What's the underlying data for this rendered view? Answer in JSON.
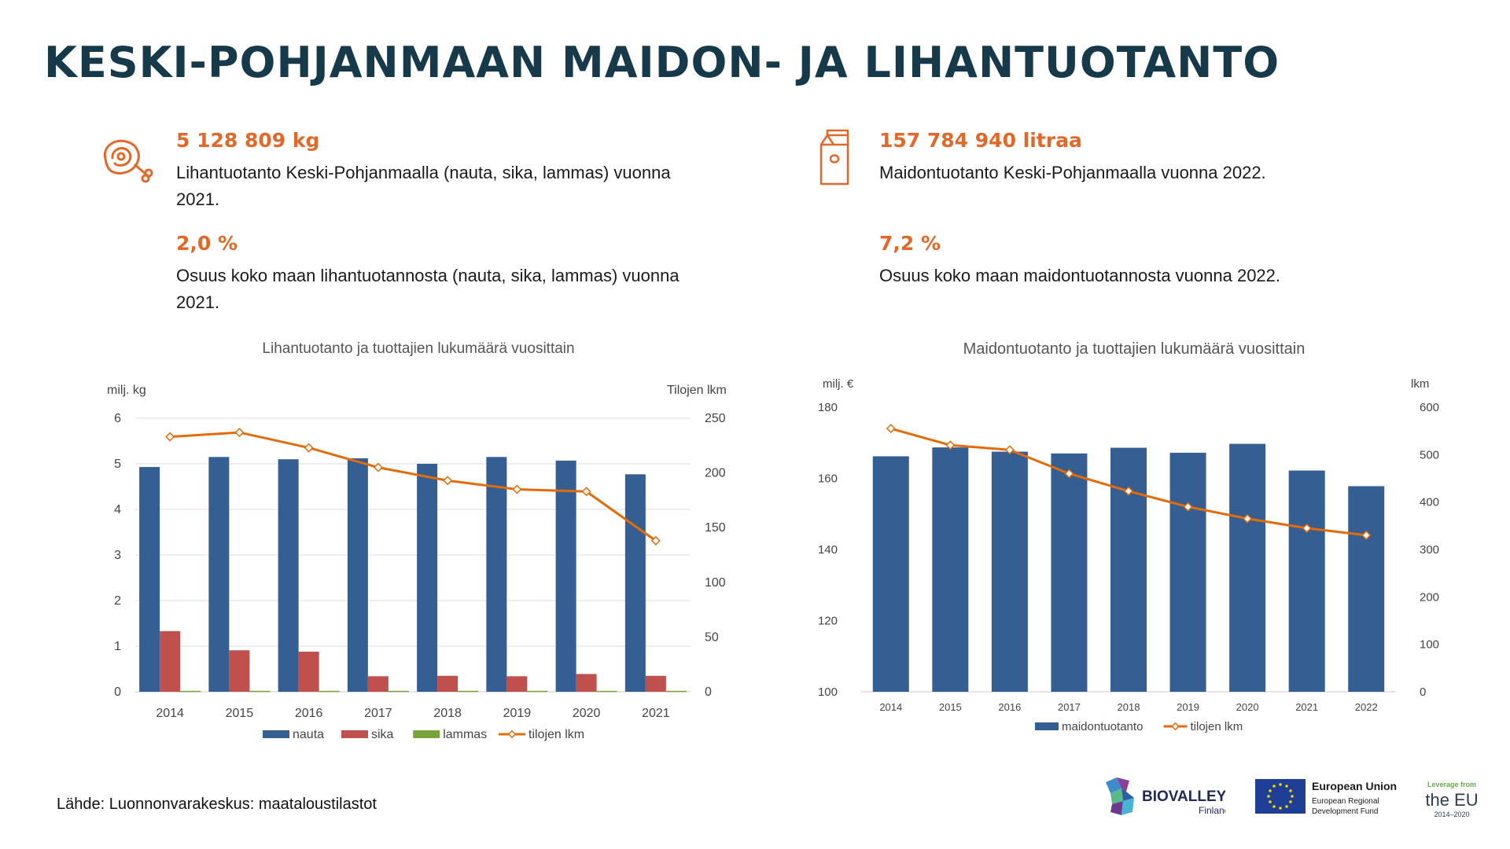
{
  "header": {
    "title": "KESKI-POHJANMAAN MAIDON- JA LIHANTUOTANTO"
  },
  "meat": {
    "icon": "meat-drumstick-icon",
    "stat1_value": "5 128 809 kg",
    "stat1_desc": "Lihantuotanto Keski-Pohjanmaalla (nauta, sika, lammas) vuonna 2021.",
    "stat2_value": "2,0 %",
    "stat2_desc": "Osuus koko maan lihantuotannosta (nauta, sika, lammas) vuonna 2021."
  },
  "milk": {
    "icon": "milk-carton-icon",
    "stat1_value": "157 784 940 litraa",
    "stat1_desc": "Maidontuotanto Keski-Pohjanmaalla vuonna 2022.",
    "stat2_value": "7,2 %",
    "stat2_desc": "Osuus koko maan maidontuotannosta vuonna 2022."
  },
  "colors": {
    "accent": "#e0692a",
    "title": "#163a4a",
    "bar_blue": "#355f93",
    "bar_red": "#c0504d",
    "bar_green": "#77a33a",
    "line_orange": "#e36c0a"
  },
  "chart_data": [
    {
      "type": "bar",
      "title": "Lihantuotanto ja tuottajien lukumäärä vuosittain",
      "ylabel": "milj. kg",
      "y2label": "Tilojen lkm",
      "ylim": [
        0,
        6
      ],
      "y2lim": [
        0,
        250
      ],
      "yticks": [
        0,
        1,
        2,
        3,
        4,
        5,
        6
      ],
      "y2ticks": [
        0,
        50,
        100,
        150,
        200,
        250
      ],
      "grid": true,
      "legend_position": "bottom",
      "categories": [
        "2014",
        "2015",
        "2016",
        "2017",
        "2018",
        "2019",
        "2020",
        "2021"
      ],
      "series": [
        {
          "name": "nauta",
          "kind": "bar",
          "axis": "left",
          "color": "#355f93",
          "values": [
            4.93,
            5.15,
            5.1,
            5.12,
            5.0,
            5.15,
            5.07,
            4.77
          ]
        },
        {
          "name": "sika",
          "kind": "bar",
          "axis": "left",
          "color": "#c0504d",
          "values": [
            1.33,
            0.91,
            0.88,
            0.34,
            0.35,
            0.34,
            0.39,
            0.35
          ]
        },
        {
          "name": "lammas",
          "kind": "bar",
          "axis": "left",
          "color": "#77a33a",
          "values": [
            0.02,
            0.02,
            0.02,
            0.02,
            0.02,
            0.02,
            0.02,
            0.02
          ]
        },
        {
          "name": "tilojen lkm",
          "kind": "line",
          "axis": "right",
          "color": "#e36c0a",
          "values": [
            233,
            237,
            223,
            205,
            193,
            185,
            183,
            138
          ]
        }
      ]
    },
    {
      "type": "bar",
      "title": "Maidontuotanto ja tuottajien lukumäärä vuosittain",
      "ylabel": "milj. €",
      "y2label": "lkm",
      "ylim": [
        100,
        180
      ],
      "y2lim": [
        0,
        600
      ],
      "yticks": [
        100,
        120,
        140,
        160,
        180
      ],
      "y2ticks": [
        0,
        100,
        200,
        300,
        400,
        500,
        600
      ],
      "grid": false,
      "legend_position": "bottom",
      "categories": [
        "2014",
        "2015",
        "2016",
        "2017",
        "2018",
        "2019",
        "2020",
        "2021",
        "2022"
      ],
      "series": [
        {
          "name": "maidontuotanto",
          "kind": "bar",
          "axis": "left",
          "color": "#355f93",
          "values": [
            166.2,
            168.7,
            167.5,
            167.0,
            168.6,
            167.2,
            169.7,
            162.2,
            157.8
          ]
        },
        {
          "name": "tilojen lkm",
          "kind": "line",
          "axis": "right",
          "color": "#e36c0a",
          "values": [
            555,
            520,
            510,
            460,
            423,
            390,
            365,
            345,
            330
          ]
        }
      ]
    }
  ],
  "footer": {
    "source": "Lähde: Luonnonvarakeskus: maataloustilastot",
    "logo1_text": "BIOVALLEY",
    "logo1_sub": "Finland",
    "logo2_line1": "European Union",
    "logo2_line2": "European Regional",
    "logo2_line3": "Development Fund",
    "logo3_line1": "Leverage from",
    "logo3_line2": "the EU",
    "logo3_line3": "2014–2020"
  }
}
